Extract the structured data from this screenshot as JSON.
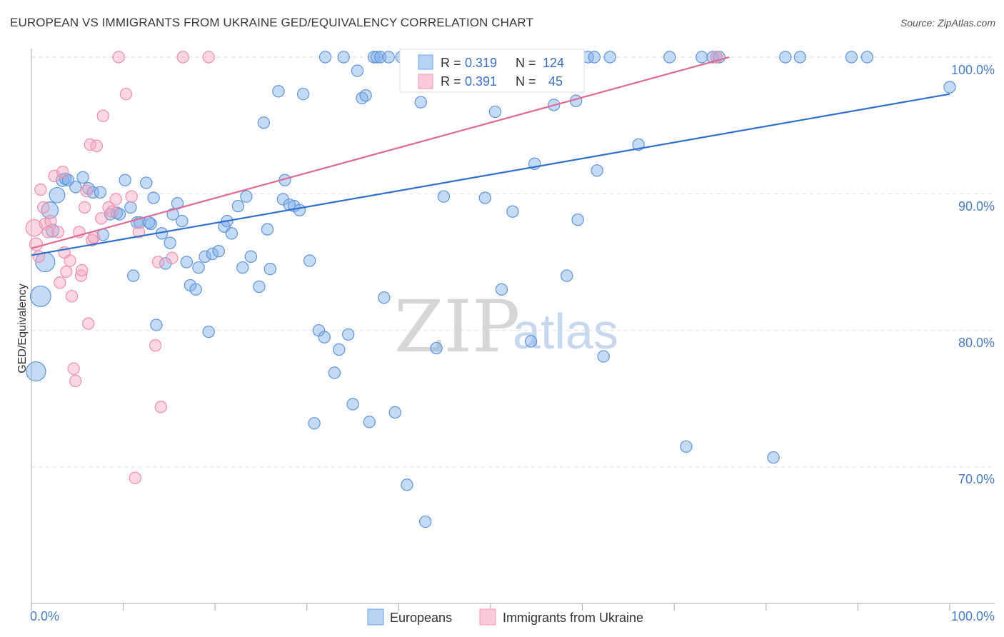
{
  "title": "EUROPEAN VS IMMIGRANTS FROM UKRAINE GED/EQUIVALENCY CORRELATION CHART",
  "source": "Source: ZipAtlas.com",
  "watermark": {
    "zip": "ZIP",
    "atlas": "atlas"
  },
  "chart_data": {
    "type": "scatter",
    "title": "EUROPEAN VS IMMIGRANTS FROM UKRAINE GED/EQUIVALENCY CORRELATION CHART",
    "xlabel": "",
    "ylabel": "GED/Equivalency",
    "xlim": [
      0,
      100
    ],
    "ylim": [
      60,
      100
    ],
    "x_tick_labels": [
      "0.0%",
      "100.0%"
    ],
    "y_ticks": [
      70,
      80,
      90,
      100
    ],
    "y_tick_labels": [
      "70.0%",
      "80.0%",
      "90.0%",
      "100.0%"
    ],
    "colors": {
      "europeans": "#7eaee8",
      "europeans_line": "#2f6fd0",
      "ukraine": "#f4a6be",
      "ukraine_line": "#e06a94",
      "grid": "#dddddd",
      "axis": "#aaaaaa"
    },
    "stats": [
      {
        "r_label": "R =",
        "r": "0.319",
        "n_label": "N =",
        "n": "124"
      },
      {
        "r_label": "R =",
        "r": "0.391",
        "n_label": "N =",
        "n": "45"
      }
    ],
    "series": [
      {
        "name": "Europeans",
        "trend": {
          "x": [
            0,
            100
          ],
          "y": [
            85.5,
            97.3
          ]
        },
        "points": [
          [
            0.5,
            77.0,
            1.5
          ],
          [
            1.0,
            82.5,
            1.6
          ],
          [
            1.5,
            85.0,
            1.5
          ],
          [
            2.0,
            88.8,
            1.3
          ],
          [
            2.3,
            87.3,
            1.0
          ],
          [
            2.8,
            89.9,
            1.2
          ],
          [
            3.4,
            91.0,
            1.0
          ],
          [
            3.7,
            91.1,
            0.9
          ],
          [
            4.0,
            91.0,
            0.9
          ],
          [
            4.8,
            90.5,
            0.9
          ],
          [
            5.6,
            91.2,
            0.9
          ],
          [
            6.2,
            90.4,
            0.9
          ],
          [
            6.7,
            90.1,
            0.9
          ],
          [
            7.5,
            90.1,
            0.9
          ],
          [
            7.8,
            87.0,
            0.9
          ],
          [
            8.6,
            88.5,
            0.9
          ],
          [
            9.3,
            88.6,
            0.9
          ],
          [
            9.6,
            88.5,
            0.9
          ],
          [
            10.2,
            91.0,
            0.9
          ],
          [
            10.8,
            89.0,
            0.9
          ],
          [
            11.1,
            84.0,
            0.9
          ],
          [
            11.5,
            87.9,
            0.9
          ],
          [
            11.8,
            87.9,
            0.9
          ],
          [
            12.5,
            90.8,
            0.9
          ],
          [
            13.0,
            87.8,
            0.9
          ],
          [
            12.8,
            87.9,
            0.9
          ],
          [
            13.3,
            89.7,
            0.9
          ],
          [
            13.6,
            80.4,
            0.9
          ],
          [
            14.2,
            87.1,
            0.9
          ],
          [
            14.6,
            84.9,
            0.9
          ],
          [
            15.1,
            86.4,
            0.9
          ],
          [
            15.4,
            88.5,
            0.9
          ],
          [
            15.9,
            89.3,
            0.9
          ],
          [
            16.4,
            88.0,
            0.9
          ],
          [
            16.9,
            85.0,
            0.9
          ],
          [
            17.3,
            83.3,
            0.9
          ],
          [
            17.9,
            83.0,
            0.9
          ],
          [
            18.2,
            84.6,
            0.9
          ],
          [
            18.9,
            85.4,
            0.9
          ],
          [
            19.3,
            79.9,
            0.9
          ],
          [
            19.7,
            85.6,
            0.9
          ],
          [
            20.4,
            85.8,
            0.9
          ],
          [
            21.0,
            87.6,
            0.9
          ],
          [
            21.3,
            88.0,
            0.9
          ],
          [
            21.8,
            87.1,
            0.9
          ],
          [
            22.5,
            89.1,
            0.9
          ],
          [
            23.0,
            84.6,
            0.9
          ],
          [
            23.4,
            89.8,
            0.9
          ],
          [
            23.9,
            85.4,
            0.9
          ],
          [
            24.8,
            83.2,
            0.9
          ],
          [
            25.3,
            95.2,
            0.9
          ],
          [
            25.7,
            87.4,
            0.9
          ],
          [
            26.0,
            84.5,
            0.9
          ],
          [
            26.9,
            97.5,
            0.9
          ],
          [
            27.4,
            89.6,
            0.9
          ],
          [
            27.6,
            91.0,
            0.9
          ],
          [
            28.1,
            89.2,
            0.9
          ],
          [
            28.6,
            89.1,
            0.9
          ],
          [
            29.2,
            88.8,
            0.9
          ],
          [
            29.6,
            97.3,
            0.9
          ],
          [
            30.3,
            85.1,
            0.9
          ],
          [
            30.8,
            73.2,
            0.9
          ],
          [
            31.3,
            80.0,
            0.9
          ],
          [
            31.9,
            79.5,
            0.9
          ],
          [
            32.0,
            100.0,
            0.9
          ],
          [
            33.0,
            76.9,
            0.9
          ],
          [
            33.5,
            78.6,
            0.9
          ],
          [
            34.0,
            100.0,
            0.9
          ],
          [
            34.5,
            79.7,
            0.9
          ],
          [
            35.0,
            74.6,
            0.9
          ],
          [
            35.5,
            99.0,
            0.9
          ],
          [
            36.0,
            97.0,
            0.9
          ],
          [
            36.4,
            97.2,
            0.9
          ],
          [
            36.8,
            73.3,
            0.9
          ],
          [
            37.3,
            100.0,
            0.9
          ],
          [
            37.6,
            100.0,
            0.9
          ],
          [
            38.0,
            100.0,
            0.9
          ],
          [
            38.4,
            82.4,
            0.9
          ],
          [
            38.9,
            100.0,
            0.9
          ],
          [
            39.6,
            74.0,
            0.9
          ],
          [
            40.3,
            100.0,
            0.9
          ],
          [
            40.9,
            68.7,
            0.9
          ],
          [
            41.3,
            100.0,
            0.9
          ],
          [
            41.8,
            100.0,
            0.9
          ],
          [
            42.4,
            96.7,
            0.9
          ],
          [
            42.9,
            66.0,
            0.9
          ],
          [
            43.3,
            100.0,
            0.9
          ],
          [
            44.1,
            78.7,
            0.9
          ],
          [
            44.9,
            89.8,
            0.9
          ],
          [
            45.5,
            100.0,
            0.9
          ],
          [
            47.3,
            100.0,
            0.9
          ],
          [
            48.2,
            100.0,
            0.9
          ],
          [
            49.0,
            100.0,
            0.9
          ],
          [
            49.4,
            89.7,
            0.9
          ],
          [
            50.5,
            96.0,
            0.9
          ],
          [
            51.2,
            83.0,
            0.9
          ],
          [
            52.4,
            88.7,
            0.9
          ],
          [
            53.0,
            100.0,
            0.9
          ],
          [
            53.8,
            100.0,
            0.9
          ],
          [
            54.4,
            79.2,
            0.9
          ],
          [
            54.8,
            92.2,
            0.9
          ],
          [
            56.0,
            100.0,
            0.9
          ],
          [
            56.9,
            96.5,
            0.9
          ],
          [
            57.6,
            100.0,
            0.9
          ],
          [
            58.3,
            84.0,
            0.9
          ],
          [
            59.3,
            96.8,
            0.9
          ],
          [
            59.5,
            88.1,
            0.9
          ],
          [
            60.6,
            100.0,
            0.9
          ],
          [
            61.6,
            91.7,
            0.9
          ],
          [
            61.3,
            100.0,
            0.9
          ],
          [
            62.3,
            78.1,
            0.9
          ],
          [
            63.0,
            100.0,
            0.9
          ],
          [
            66.1,
            93.6,
            0.9
          ],
          [
            69.5,
            100.0,
            0.9
          ],
          [
            71.3,
            71.5,
            0.9
          ],
          [
            73.0,
            100.0,
            0.9
          ],
          [
            74.2,
            100.0,
            0.9
          ],
          [
            74.6,
            100.0,
            0.9
          ],
          [
            74.9,
            100.0,
            0.9
          ],
          [
            80.8,
            70.7,
            0.9
          ],
          [
            82.1,
            100.0,
            0.9
          ],
          [
            83.7,
            100.0,
            0.9
          ],
          [
            89.3,
            100.0,
            0.9
          ],
          [
            91.0,
            100.0,
            0.9
          ],
          [
            100.0,
            97.8,
            0.9
          ]
        ]
      },
      {
        "name": "Immigrants from Ukraine",
        "trend": {
          "x": [
            0,
            76
          ],
          "y": [
            86.0,
            100.0
          ]
        },
        "points": [
          [
            0.3,
            87.5,
            1.3
          ],
          [
            0.5,
            86.3,
            1.0
          ],
          [
            0.8,
            85.4,
            0.9
          ],
          [
            1.0,
            90.3,
            0.9
          ],
          [
            1.3,
            89.0,
            0.9
          ],
          [
            1.5,
            87.8,
            0.9
          ],
          [
            1.8,
            87.2,
            0.9
          ],
          [
            2.1,
            88.0,
            0.9
          ],
          [
            2.5,
            91.3,
            0.9
          ],
          [
            2.9,
            87.2,
            0.9
          ],
          [
            3.1,
            83.5,
            0.9
          ],
          [
            3.4,
            91.6,
            0.9
          ],
          [
            3.6,
            85.7,
            0.9
          ],
          [
            3.8,
            84.3,
            0.9
          ],
          [
            4.2,
            85.1,
            0.9
          ],
          [
            4.4,
            82.5,
            0.9
          ],
          [
            4.6,
            77.2,
            0.9
          ],
          [
            4.8,
            76.3,
            0.9
          ],
          [
            5.2,
            87.2,
            0.9
          ],
          [
            5.4,
            84.0,
            0.9
          ],
          [
            5.5,
            84.4,
            0.9
          ],
          [
            5.8,
            89.0,
            0.9
          ],
          [
            6.0,
            90.2,
            0.9
          ],
          [
            6.2,
            80.5,
            0.9
          ],
          [
            6.4,
            93.6,
            0.9
          ],
          [
            6.6,
            86.6,
            0.9
          ],
          [
            6.8,
            86.8,
            0.9
          ],
          [
            7.1,
            93.5,
            0.9
          ],
          [
            7.8,
            95.7,
            0.9
          ],
          [
            7.6,
            88.2,
            0.9
          ],
          [
            8.4,
            89.0,
            0.9
          ],
          [
            8.8,
            88.7,
            0.9
          ],
          [
            9.2,
            89.6,
            0.9
          ],
          [
            9.5,
            100.0,
            0.9
          ],
          [
            10.3,
            97.3,
            0.9
          ],
          [
            10.9,
            89.8,
            0.9
          ],
          [
            11.3,
            69.2,
            0.9
          ],
          [
            11.7,
            87.2,
            0.9
          ],
          [
            13.5,
            78.9,
            0.9
          ],
          [
            14.1,
            74.4,
            0.9
          ],
          [
            13.8,
            85.0,
            0.9
          ],
          [
            15.3,
            85.3,
            0.9
          ],
          [
            16.5,
            100.0,
            0.9
          ],
          [
            19.3,
            100.0,
            0.9
          ],
          [
            74.6,
            100.0,
            0.9
          ]
        ]
      }
    ],
    "legend": [
      "Europeans",
      "Immigrants from Ukraine"
    ]
  }
}
